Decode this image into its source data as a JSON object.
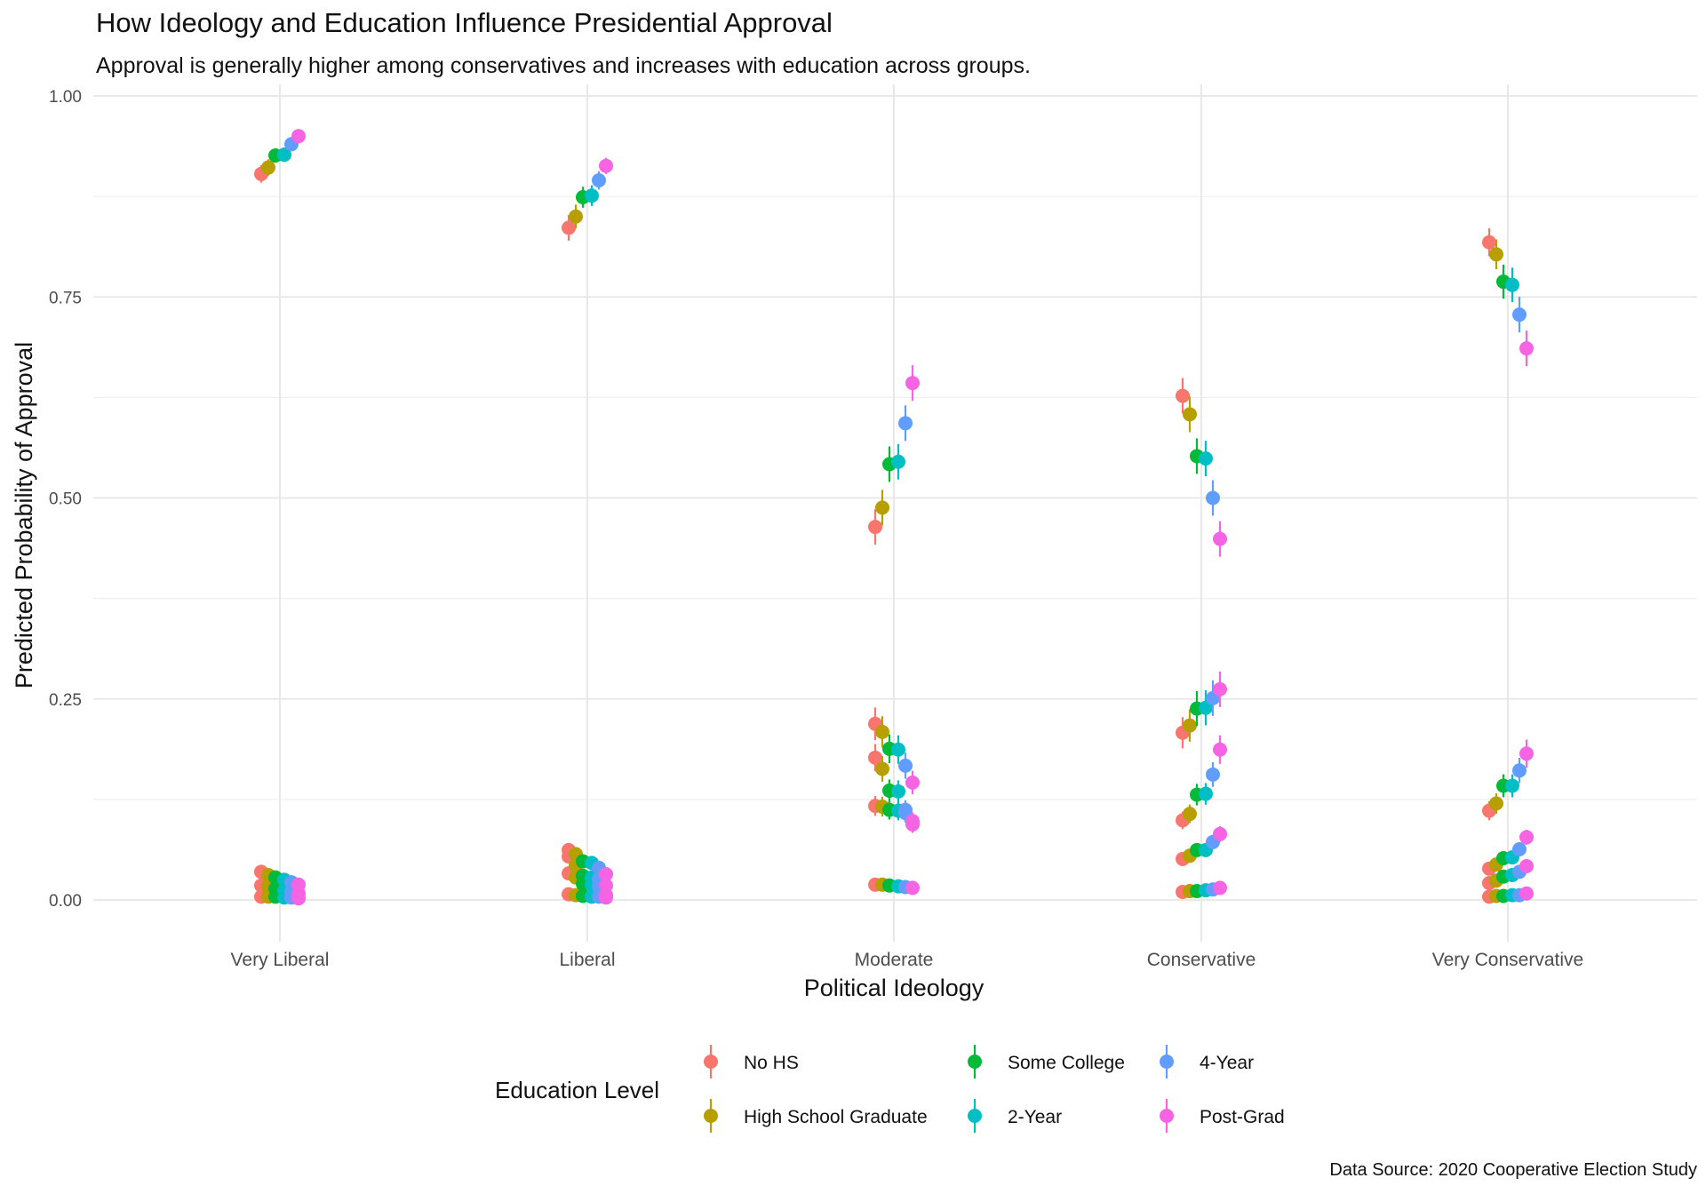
{
  "chart_data": {
    "type": "scatter",
    "title": "How Ideology and Education Influence Presidential Approval",
    "subtitle": "Approval is generally higher among conservatives and increases with education across groups.",
    "caption": "Data Source: 2020 Cooperative Election Study",
    "xlabel": "Political Ideology",
    "ylabel": "Predicted Probability of Approval",
    "ylim": [
      -0.06,
      1.0
    ],
    "yticks": [
      0.0,
      0.25,
      0.5,
      0.75,
      1.0
    ],
    "ytick_labels": [
      "0.00",
      "0.25",
      "0.50",
      "0.75",
      "1.00"
    ],
    "categories": [
      "Very Liberal",
      "Liberal",
      "Moderate",
      "Conservative",
      "Very Conservative"
    ],
    "grid": true,
    "legend": {
      "title": "Education Level",
      "position": "bottom"
    },
    "series": [
      {
        "name": "No HS",
        "color": "#F8766D",
        "values": [
          [
            0.903,
            0.035,
            0.018,
            0.004
          ],
          [
            0.836,
            0.062,
            0.054,
            0.033,
            0.007
          ],
          [
            0.464,
            0.219,
            0.177,
            0.117,
            0.019
          ],
          [
            0.627,
            0.208,
            0.099,
            0.051,
            0.01
          ],
          [
            0.818,
            0.111,
            0.039,
            0.021,
            0.004
          ]
        ]
      },
      {
        "name": "High School Graduate",
        "color": "#B79F00",
        "values": [
          [
            0.911,
            0.031,
            0.017,
            0.004
          ],
          [
            0.85,
            0.057,
            0.043,
            0.028,
            0.006
          ],
          [
            0.488,
            0.209,
            0.163,
            0.116,
            0.019
          ],
          [
            0.604,
            0.217,
            0.107,
            0.055,
            0.011
          ],
          [
            0.803,
            0.12,
            0.044,
            0.024,
            0.005
          ]
        ]
      },
      {
        "name": "Some College",
        "color": "#00BA38",
        "values": [
          [
            0.926,
            0.028,
            0.014,
            0.004
          ],
          [
            0.874,
            0.048,
            0.03,
            0.02,
            0.005
          ],
          [
            0.542,
            0.188,
            0.136,
            0.112,
            0.018
          ],
          [
            0.552,
            0.238,
            0.131,
            0.062,
            0.011
          ],
          [
            0.769,
            0.142,
            0.052,
            0.029,
            0.005
          ]
        ]
      },
      {
        "name": "2-Year",
        "color": "#00BFC4",
        "values": [
          [
            0.927,
            0.025,
            0.012,
            0.003
          ],
          [
            0.876,
            0.046,
            0.028,
            0.019,
            0.004
          ],
          [
            0.545,
            0.187,
            0.135,
            0.111,
            0.017
          ],
          [
            0.549,
            0.239,
            0.132,
            0.062,
            0.012
          ],
          [
            0.765,
            0.142,
            0.053,
            0.031,
            0.006
          ]
        ]
      },
      {
        "name": "4-Year",
        "color": "#619CFF",
        "values": [
          [
            0.94,
            0.022,
            0.01,
            0.003
          ],
          [
            0.895,
            0.04,
            0.026,
            0.016,
            0.004
          ],
          [
            0.593,
            0.167,
            0.112,
            0.108,
            0.016
          ],
          [
            0.5,
            0.251,
            0.156,
            0.072,
            0.013
          ],
          [
            0.728,
            0.161,
            0.063,
            0.035,
            0.006
          ]
        ]
      },
      {
        "name": "Post-Grad",
        "color": "#F564E3",
        "values": [
          [
            0.95,
            0.019,
            0.008,
            0.002
          ],
          [
            0.913,
            0.032,
            0.018,
            0.006,
            0.003
          ],
          [
            0.643,
            0.146,
            0.098,
            0.094,
            0.015
          ],
          [
            0.449,
            0.262,
            0.187,
            0.082,
            0.015
          ],
          [
            0.686,
            0.182,
            0.078,
            0.042,
            0.008
          ]
        ]
      }
    ]
  }
}
